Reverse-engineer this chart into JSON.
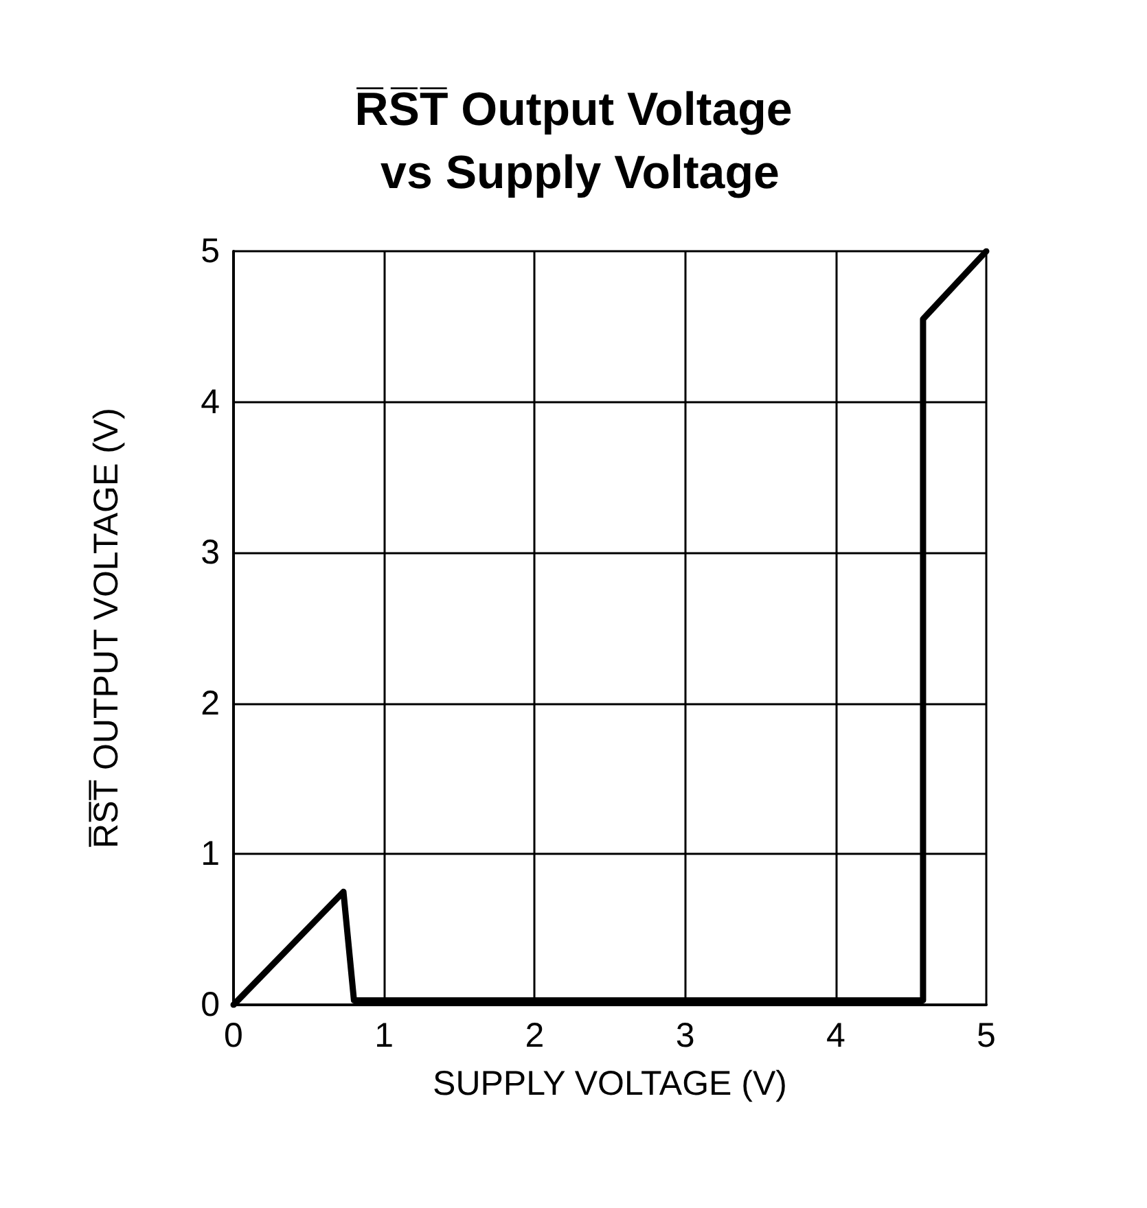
{
  "chart_data": {
    "type": "line",
    "title": "R̅S̅T̅ Output Voltage vs Supply Voltage",
    "xlabel": "SUPPLY VOLTAGE (V)",
    "ylabel": "R̅S̅T̅ OUTPUT VOLTAGE (V)",
    "x": [
      0,
      0.73,
      0.8,
      4.58,
      4.58,
      5
    ],
    "series": [
      {
        "color": "#000000",
        "values": [
          0,
          0.75,
          0.03,
          0.03,
          4.55,
          5
        ]
      }
    ],
    "xlim": [
      0,
      5
    ],
    "ylim": [
      0,
      5
    ],
    "xticks": [
      0,
      1,
      2,
      3,
      4,
      5
    ],
    "yticks": [
      0,
      1,
      2,
      3,
      4,
      5
    ],
    "grid": true,
    "marker": "none",
    "line_style": "solid"
  }
}
